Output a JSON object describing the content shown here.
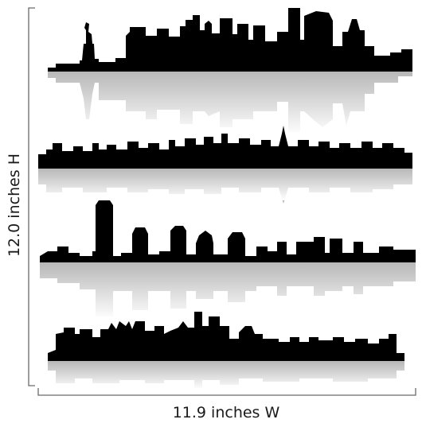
{
  "dimensions": {
    "height_label": "12.0 inches H",
    "width_label": "11.9 inches W"
  },
  "artwork": {
    "silhouette_color": "#000000",
    "reflection_color": "#b8b8b8",
    "bracket_color": "#6a6a6a"
  }
}
